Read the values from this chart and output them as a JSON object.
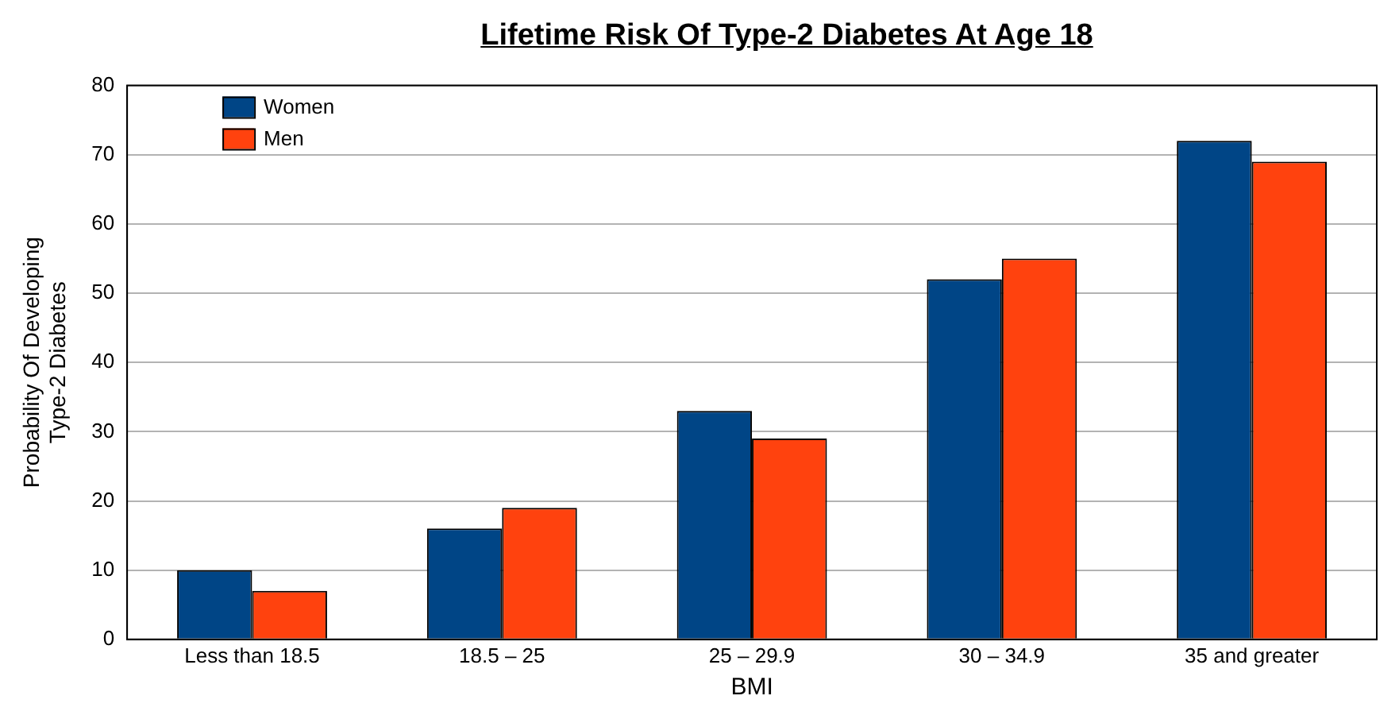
{
  "chart_data": {
    "type": "bar",
    "title": "Lifetime Risk Of Type-2 Diabetes At Age 18",
    "xlabel": "BMI",
    "ylabel": "Probability Of Developing\nType-2 Diabetes",
    "categories": [
      "Less than 18.5",
      "18.5 – 25",
      "25 – 29.9",
      "30 – 34.9",
      "35 and greater"
    ],
    "series": [
      {
        "name": "Women",
        "color": "#004586",
        "values": [
          10,
          16,
          33,
          52,
          72
        ]
      },
      {
        "name": "Men",
        "color": "#ff420e",
        "values": [
          7,
          19,
          29,
          55,
          69
        ]
      }
    ],
    "ylim": [
      0,
      80
    ],
    "yticks": [
      0,
      10,
      20,
      30,
      40,
      50,
      60,
      70,
      80
    ],
    "grid": "y",
    "legend": "top left"
  }
}
